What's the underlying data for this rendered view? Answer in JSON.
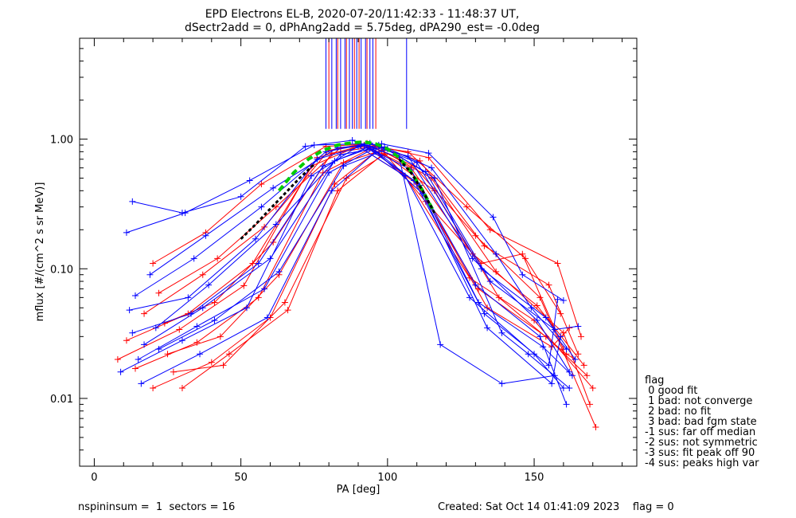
{
  "chart_data": {
    "type": "line",
    "title_line1": "EPD Electrons EL-B, 2020-07-20/11:42:33 - 11:48:37 UT,",
    "title_line2": "dSectr2add = 0, dPhAng2add = 5.75deg, dPA290_est=  -0.0deg",
    "xlabel": "PA [deg]",
    "ylabel": "mflux [#/(cm^2 s sr MeV)]",
    "xlim": [
      -5,
      185
    ],
    "ylim": [
      0.003,
      6.0
    ],
    "yscale": "log",
    "x_ticks": [
      "0",
      "50",
      "100",
      "150"
    ],
    "y_ticks": [
      "0.01",
      "0.10",
      "1.00"
    ],
    "grid": false,
    "colors": {
      "red": "#ff0000",
      "blue": "#0000ff",
      "green": "#00cc00",
      "black": "#000000"
    },
    "vertical_markers": {
      "y_range": [
        1.2,
        6.0
      ],
      "blue_x": [
        79,
        81,
        82.5,
        84,
        85.5,
        87,
        88,
        89.5,
        91,
        92.5,
        94,
        95,
        106.5
      ],
      "red_x": [
        80,
        83,
        86,
        88.7,
        90.3,
        93,
        96
      ]
    },
    "fit_curves": [
      {
        "name": "green",
        "x": [
          63,
          68,
          73,
          78,
          83,
          88,
          92,
          96,
          100,
          104,
          108,
          112,
          116
        ],
        "y": [
          0.4,
          0.55,
          0.7,
          0.82,
          0.9,
          0.94,
          0.95,
          0.92,
          0.84,
          0.72,
          0.56,
          0.4,
          0.27
        ]
      },
      {
        "name": "black-dashed",
        "x": [
          50,
          55,
          60,
          65,
          70,
          75
        ],
        "y": [
          0.17,
          0.22,
          0.29,
          0.38,
          0.5,
          0.64
        ]
      },
      {
        "name": "black-dashed-right",
        "x": [
          104,
          108,
          112,
          116
        ],
        "y": [
          0.7,
          0.55,
          0.4,
          0.27
        ]
      }
    ],
    "series": [
      {
        "color": "red",
        "x": [
          8,
          29,
          51,
          74,
          90,
          106,
          128,
          150,
          170
        ],
        "y": [
          0.02,
          0.034,
          0.074,
          0.62,
          0.88,
          0.52,
          0.085,
          0.04,
          0.012
        ]
      },
      {
        "color": "red",
        "x": [
          11,
          32,
          54,
          76,
          92,
          108,
          129,
          151,
          167
        ],
        "y": [
          0.028,
          0.045,
          0.11,
          0.72,
          0.9,
          0.6,
          0.13,
          0.052,
          0.018
        ]
      },
      {
        "color": "red",
        "x": [
          14,
          35,
          56,
          78,
          94,
          110,
          131,
          154,
          168
        ],
        "y": [
          0.017,
          0.027,
          0.06,
          0.55,
          0.84,
          0.45,
          0.07,
          0.03,
          0.015
        ]
      },
      {
        "color": "red",
        "x": [
          17,
          37,
          58,
          80,
          93,
          111,
          133,
          155,
          165
        ],
        "y": [
          0.045,
          0.09,
          0.21,
          0.82,
          0.93,
          0.68,
          0.15,
          0.075,
          0.022
        ]
      },
      {
        "color": "red",
        "x": [
          20,
          40,
          60,
          82,
          96,
          112,
          134,
          156,
          162
        ],
        "y": [
          0.012,
          0.019,
          0.042,
          0.45,
          0.8,
          0.38,
          0.05,
          0.025,
          0.035
        ]
      },
      {
        "color": "red",
        "x": [
          22,
          42,
          62,
          84,
          97,
          114,
          135,
          158,
          166
        ],
        "y": [
          0.065,
          0.12,
          0.3,
          0.86,
          0.88,
          0.72,
          0.2,
          0.11,
          0.03
        ]
      },
      {
        "color": "red",
        "x": [
          25,
          43,
          63,
          85,
          98,
          115,
          137,
          160,
          169
        ],
        "y": [
          0.022,
          0.03,
          0.09,
          0.66,
          0.82,
          0.5,
          0.095,
          0.032,
          0.009
        ]
      },
      {
        "color": "red",
        "x": [
          27,
          44,
          65,
          86,
          99,
          116,
          138,
          161,
          164
        ],
        "y": [
          0.016,
          0.018,
          0.055,
          0.5,
          0.76,
          0.4,
          0.06,
          0.022,
          0.02
        ]
      },
      {
        "color": "red",
        "x": [
          20,
          38,
          57,
          79,
          91,
          107,
          127,
          147,
          159
        ],
        "y": [
          0.11,
          0.19,
          0.45,
          0.88,
          0.91,
          0.8,
          0.3,
          0.12,
          0.045
        ]
      },
      {
        "color": "red",
        "x": [
          24,
          41,
          61,
          81,
          95,
          109,
          130,
          152,
          171
        ],
        "y": [
          0.038,
          0.055,
          0.16,
          0.78,
          0.87,
          0.62,
          0.18,
          0.06,
          0.006
        ]
      },
      {
        "color": "red",
        "x": [
          30,
          46,
          66,
          83,
          99,
          113,
          132,
          146,
          160
        ],
        "y": [
          0.012,
          0.022,
          0.048,
          0.4,
          0.78,
          0.33,
          0.11,
          0.13,
          0.024
        ]
      },
      {
        "color": "blue",
        "x": [
          9,
          30,
          52,
          74,
          90,
          106,
          128,
          150,
          160
        ],
        "y": [
          0.016,
          0.028,
          0.05,
          0.52,
          0.88,
          0.52,
          0.06,
          0.022,
          0.012
        ]
      },
      {
        "color": "blue",
        "x": [
          11,
          31,
          53,
          75,
          91,
          107,
          129,
          151,
          162
        ],
        "y": [
          0.19,
          0.27,
          0.48,
          0.9,
          0.92,
          0.74,
          0.12,
          0.04,
          0.016
        ]
      },
      {
        "color": "blue",
        "x": [
          12,
          32,
          55,
          76,
          92,
          108,
          130,
          152,
          161
        ],
        "y": [
          0.048,
          0.06,
          0.17,
          0.7,
          0.89,
          0.58,
          0.075,
          0.03,
          0.009
        ]
      },
      {
        "color": "blue",
        "x": [
          13,
          33,
          56,
          78,
          93,
          109,
          131,
          153,
          163
        ],
        "y": [
          0.032,
          0.045,
          0.11,
          0.62,
          0.86,
          0.48,
          0.055,
          0.025,
          0.015
        ]
      },
      {
        "color": "blue",
        "x": [
          14,
          34,
          57,
          79,
          94,
          110,
          132,
          154,
          164
        ],
        "y": [
          0.062,
          0.12,
          0.3,
          0.8,
          0.93,
          0.66,
          0.1,
          0.042,
          0.02
        ]
      },
      {
        "color": "blue",
        "x": [
          15,
          35,
          58,
          80,
          95,
          111,
          133,
          155,
          158
        ],
        "y": [
          0.02,
          0.036,
          0.07,
          0.55,
          0.84,
          0.44,
          0.045,
          0.018,
          0.058
        ]
      },
      {
        "color": "blue",
        "x": [
          16,
          36,
          59,
          81,
          96,
          112,
          134,
          156,
          159
        ],
        "y": [
          0.013,
          0.022,
          0.042,
          0.4,
          0.8,
          0.38,
          0.035,
          0.013,
          0.03
        ]
      },
      {
        "color": "blue",
        "x": [
          17,
          37,
          60,
          82,
          97,
          113,
          135,
          157,
          165
        ],
        "y": [
          0.026,
          0.05,
          0.12,
          0.68,
          0.9,
          0.56,
          0.08,
          0.034,
          0.036
        ]
      },
      {
        "color": "blue",
        "x": [
          19,
          38,
          61,
          83,
          98,
          114,
          136,
          146,
          160
        ],
        "y": [
          0.09,
          0.18,
          0.42,
          0.86,
          0.92,
          0.78,
          0.25,
          0.09,
          0.057
        ]
      },
      {
        "color": "blue",
        "x": [
          21,
          39,
          62,
          84,
          99,
          115,
          137,
          149,
          161
        ],
        "y": [
          0.035,
          0.075,
          0.22,
          0.76,
          0.87,
          0.6,
          0.13,
          0.05,
          0.024
        ]
      },
      {
        "color": "blue",
        "x": [
          13,
          30,
          50,
          72,
          88,
          104,
          118,
          139,
          157
        ],
        "y": [
          0.33,
          0.27,
          0.36,
          0.88,
          0.98,
          0.72,
          0.026,
          0.013,
          0.015
        ]
      },
      {
        "color": "blue",
        "x": [
          22,
          41,
          63,
          85,
          100,
          116,
          139,
          148,
          162
        ],
        "y": [
          0.024,
          0.04,
          0.095,
          0.62,
          0.84,
          0.5,
          0.032,
          0.022,
          0.012
        ]
      }
    ]
  },
  "legend": {
    "title": "flag",
    "items": [
      " 0 good fit",
      " 1 bad: not converge",
      " 2 bad: no fit",
      " 3 bad: bad fgm state",
      "-1 sus: far off median",
      "-2 sus: not symmetric",
      "-3 sus: fit peak off 90",
      "-4 sus: peaks high var"
    ]
  },
  "footer": {
    "left": "nspininsum =  1  sectors = 16",
    "right": "Created: Sat Oct 14 01:41:09 2023    flag = 0"
  }
}
